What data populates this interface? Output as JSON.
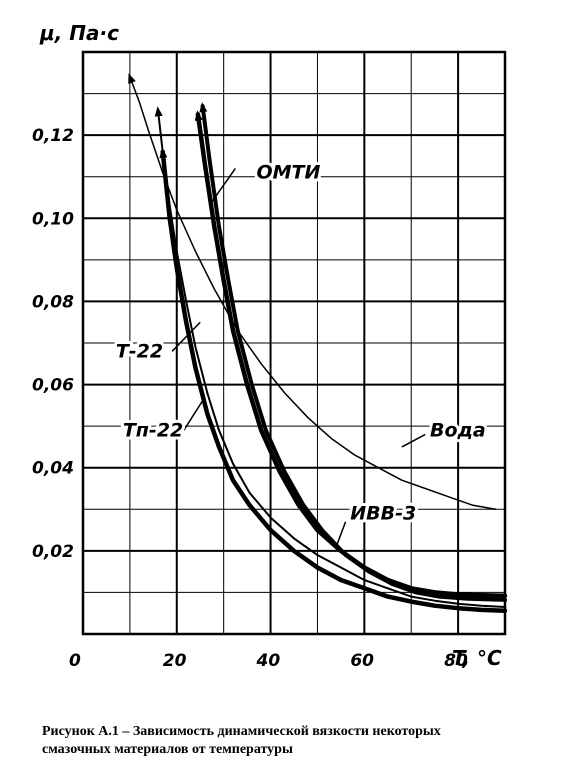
{
  "chart_data": {
    "type": "line",
    "ylabel": "μ, Па·с",
    "xlabel": "T, °C",
    "xlim": [
      0,
      90
    ],
    "ylim": [
      0,
      0.14
    ],
    "x_ticks": [
      {
        "value": 0,
        "label": "0"
      },
      {
        "value": 20,
        "label": "20"
      },
      {
        "value": 40,
        "label": "40"
      },
      {
        "value": 60,
        "label": "60"
      },
      {
        "value": 80,
        "label": "80"
      }
    ],
    "y_ticks": [
      {
        "value": 0.02,
        "label": "0,02"
      },
      {
        "value": 0.04,
        "label": "0,04"
      },
      {
        "value": 0.06,
        "label": "0,06"
      },
      {
        "value": 0.08,
        "label": "0,08"
      },
      {
        "value": 0.1,
        "label": "0,10"
      },
      {
        "value": 0.12,
        "label": "0,12"
      }
    ],
    "grid": true,
    "series": [
      {
        "name": "ОМТИ",
        "stroke": 4.5,
        "points": [
          [
            24.5,
            0.125
          ],
          [
            26,
            0.113
          ],
          [
            28,
            0.098
          ],
          [
            30,
            0.085
          ],
          [
            32,
            0.073
          ],
          [
            35,
            0.06
          ],
          [
            38,
            0.049
          ],
          [
            42,
            0.039
          ],
          [
            46,
            0.031
          ],
          [
            50,
            0.025
          ],
          [
            55,
            0.02
          ],
          [
            60,
            0.016
          ],
          [
            65,
            0.013
          ],
          [
            70,
            0.011
          ],
          [
            75,
            0.01
          ],
          [
            80,
            0.0095
          ],
          [
            85,
            0.0093
          ],
          [
            90,
            0.0092
          ]
        ],
        "label_at": [
          37,
          0.111
        ],
        "leader": [
          [
            32.5,
            0.112
          ],
          [
            27.5,
            0.104
          ]
        ]
      },
      {
        "name": "ИВВ-3",
        "stroke": 4,
        "points": [
          [
            25.5,
            0.127
          ],
          [
            27,
            0.114
          ],
          [
            29,
            0.098
          ],
          [
            31,
            0.085
          ],
          [
            33,
            0.073
          ],
          [
            36,
            0.06
          ],
          [
            39,
            0.049
          ],
          [
            43,
            0.039
          ],
          [
            47,
            0.031
          ],
          [
            51,
            0.025
          ],
          [
            56,
            0.019
          ],
          [
            61,
            0.015
          ],
          [
            66,
            0.012
          ],
          [
            71,
            0.01
          ],
          [
            76,
            0.009
          ],
          [
            82,
            0.0085
          ],
          [
            90,
            0.0082
          ]
        ],
        "label_at": [
          57,
          0.029
        ],
        "leader": [
          [
            56,
            0.027
          ],
          [
            54,
            0.021
          ]
        ]
      },
      {
        "name": "Вода",
        "stroke": 1.5,
        "points": [
          [
            10,
            0.134
          ],
          [
            12,
            0.128
          ],
          [
            14,
            0.121
          ],
          [
            17,
            0.111
          ],
          [
            20,
            0.102
          ],
          [
            24,
            0.092
          ],
          [
            28,
            0.083
          ],
          [
            33,
            0.073
          ],
          [
            38,
            0.065
          ],
          [
            43,
            0.058
          ],
          [
            48,
            0.052
          ],
          [
            53,
            0.047
          ],
          [
            58,
            0.043
          ],
          [
            63,
            0.04
          ],
          [
            68,
            0.037
          ],
          [
            73,
            0.035
          ],
          [
            78,
            0.033
          ],
          [
            83,
            0.031
          ],
          [
            88,
            0.03
          ]
        ],
        "label_at": [
          74,
          0.049
        ],
        "leader": [
          [
            73,
            0.048
          ],
          [
            68,
            0.045
          ]
        ]
      },
      {
        "name": "Т-22",
        "stroke": 2,
        "points": [
          [
            16,
            0.126
          ],
          [
            17,
            0.116
          ],
          [
            18.5,
            0.103
          ],
          [
            20,
            0.092
          ],
          [
            22,
            0.08
          ],
          [
            24,
            0.069
          ],
          [
            26.5,
            0.058
          ],
          [
            29,
            0.049
          ],
          [
            32,
            0.041
          ],
          [
            35.5,
            0.034
          ],
          [
            40,
            0.028
          ],
          [
            45,
            0.023
          ],
          [
            50,
            0.019
          ],
          [
            55,
            0.016
          ],
          [
            60,
            0.013
          ],
          [
            65,
            0.011
          ],
          [
            70,
            0.009
          ],
          [
            75,
            0.008
          ],
          [
            80,
            0.0073
          ],
          [
            85,
            0.0068
          ],
          [
            90,
            0.0065
          ]
        ],
        "label_at": [
          7,
          0.068
        ],
        "leader": [
          [
            19,
            0.068
          ],
          [
            25,
            0.075
          ]
        ]
      },
      {
        "name": "Тп-22",
        "stroke": 4.5,
        "points": [
          [
            17,
            0.116
          ],
          [
            18.5,
            0.1
          ],
          [
            20,
            0.088
          ],
          [
            22,
            0.075
          ],
          [
            24,
            0.064
          ],
          [
            26.5,
            0.053
          ],
          [
            29,
            0.045
          ],
          [
            32,
            0.037
          ],
          [
            35.5,
            0.031
          ],
          [
            40,
            0.025
          ],
          [
            45,
            0.02
          ],
          [
            50,
            0.016
          ],
          [
            55,
            0.013
          ],
          [
            60,
            0.011
          ],
          [
            65,
            0.009
          ],
          [
            70,
            0.0078
          ],
          [
            75,
            0.0068
          ],
          [
            80,
            0.0062
          ],
          [
            85,
            0.0058
          ],
          [
            90,
            0.0056
          ]
        ],
        "label_at": [
          8.5,
          0.049
        ],
        "leader": [
          [
            21.5,
            0.049
          ],
          [
            26,
            0.057
          ]
        ]
      }
    ]
  },
  "caption": {
    "line1": "Рисунок А.1 – Зависимость динамической вязкости некоторых",
    "line2": "смазочных материалов от температуры"
  }
}
